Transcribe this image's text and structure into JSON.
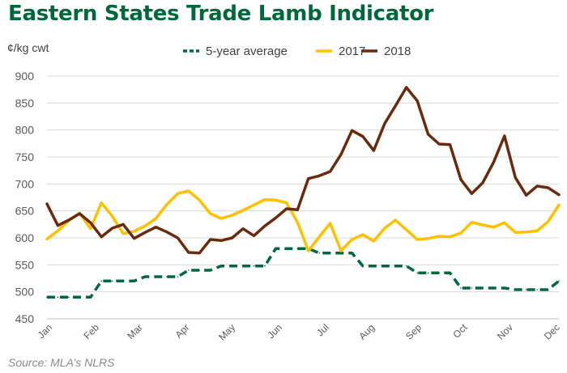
{
  "title": "Eastern States Trade Lamb Indicator",
  "source": "Source: MLA’s NLRS",
  "colors": {
    "title": "#00693c",
    "avg": "#00693c",
    "y2017": "#ffc000",
    "y2018": "#6b2a0e",
    "grid": "#d9d9d9"
  },
  "chart_data": {
    "type": "line",
    "ylabel": "¢/kg cwt",
    "ylim": [
      450,
      900
    ],
    "yticks": [
      450,
      500,
      550,
      600,
      650,
      700,
      750,
      800,
      850,
      900
    ],
    "xlim": [
      0,
      47
    ],
    "month_labels": [
      "Jan",
      "Feb",
      "Mar",
      "Apr",
      "May",
      "Jun",
      "Jul",
      "Aug",
      "Sep",
      "Oct",
      "Nov",
      "Dec"
    ],
    "month_positions": [
      0,
      4.3,
      8.3,
      12.6,
      16.8,
      21.1,
      25.4,
      29.6,
      33.9,
      38.1,
      42.3,
      46.6
    ],
    "grid": "horizontal",
    "legend_position": "top",
    "series": [
      {
        "name": "5-year average",
        "key": "avg",
        "style": "dashed",
        "x": [
          0,
          1,
          2,
          3,
          4,
          5,
          6,
          7,
          8,
          9,
          10,
          11,
          12,
          13,
          14,
          15,
          16,
          17,
          18,
          19,
          20,
          21,
          22,
          23,
          24,
          25,
          26,
          27,
          28,
          29,
          30,
          31,
          32,
          33,
          34,
          35,
          36,
          37,
          38,
          39,
          40,
          41,
          42,
          43,
          44,
          45,
          46,
          47
        ],
        "values": [
          490,
          490,
          490,
          490,
          490,
          520,
          520,
          520,
          520,
          528,
          528,
          528,
          528,
          540,
          540,
          540,
          548,
          548,
          548,
          548,
          548,
          580,
          580,
          580,
          580,
          572,
          572,
          572,
          572,
          548,
          548,
          548,
          548,
          548,
          535,
          535,
          535,
          535,
          507,
          507,
          507,
          507,
          507,
          504,
          504,
          504,
          504,
          520
        ]
      },
      {
        "name": "2017",
        "key": "y2017",
        "style": "solid",
        "x": [
          0,
          1,
          2,
          3,
          4,
          5,
          6,
          7,
          8,
          9,
          10,
          11,
          12,
          13,
          14,
          15,
          16,
          17,
          18,
          19,
          20,
          21,
          22,
          23,
          24,
          25,
          26,
          27,
          28,
          29,
          30,
          31,
          32,
          33,
          34,
          35,
          36,
          37,
          38,
          39,
          40,
          41,
          42,
          43,
          44,
          45,
          46,
          47
        ],
        "values": [
          598,
          613,
          632,
          646,
          617,
          665,
          640,
          608,
          612,
          622,
          636,
          662,
          682,
          687,
          670,
          645,
          636,
          642,
          651,
          661,
          671,
          670,
          665,
          629,
          576,
          602,
          627,
          576,
          597,
          606,
          594,
          618,
          633,
          615,
          597,
          599,
          603,
          602,
          609,
          629,
          624,
          620,
          628,
          610,
          611,
          613,
          630,
          661
        ]
      },
      {
        "name": "2018",
        "key": "y2018",
        "style": "solid",
        "x": [
          0,
          1,
          2,
          3,
          4,
          5,
          6,
          7,
          8,
          9,
          10,
          11,
          12,
          13,
          14,
          15,
          16,
          17,
          18,
          19,
          20,
          21,
          22,
          23,
          24,
          25,
          26,
          27,
          28,
          29,
          30,
          31,
          32,
          33,
          34,
          35,
          36,
          37,
          38,
          39,
          40,
          41,
          42,
          43,
          44,
          45,
          46,
          47
        ],
        "values": [
          663,
          623,
          633,
          645,
          628,
          602,
          618,
          625,
          599,
          610,
          620,
          611,
          600,
          573,
          572,
          597,
          595,
          600,
          617,
          604,
          622,
          637,
          654,
          652,
          710,
          715,
          723,
          755,
          799,
          788,
          762,
          812,
          845,
          879,
          854,
          792,
          774,
          773,
          708,
          682,
          702,
          740,
          789,
          712,
          679,
          696,
          693,
          680
        ]
      }
    ]
  }
}
